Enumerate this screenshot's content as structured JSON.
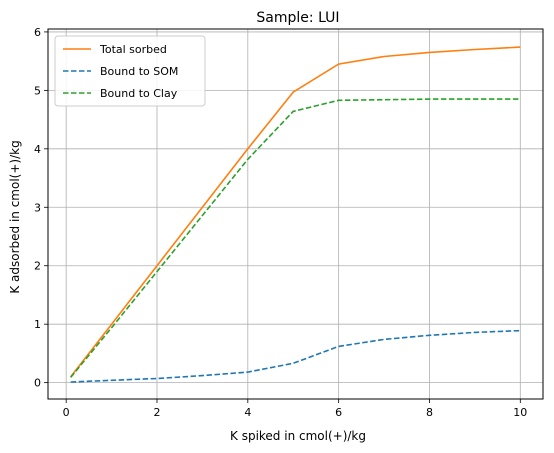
{
  "chart_data": {
    "type": "line",
    "title": "Sample: LUI",
    "xlabel": "K spiked in cmol(+)/kg",
    "ylabel": "K adsorbed in cmol(+)/kg",
    "xlim": [
      -0.4,
      10.5
    ],
    "ylim": [
      -0.28,
      6.05
    ],
    "x_ticks": [
      0,
      2,
      4,
      6,
      8,
      10
    ],
    "y_ticks": [
      0,
      1,
      2,
      3,
      4,
      5,
      6
    ],
    "grid": true,
    "legend_position": "top-left",
    "series": [
      {
        "name": "Total sorbed",
        "color": "#ff7f0e",
        "dash": "solid",
        "x": [
          0.1,
          1,
          2,
          3,
          4,
          5,
          6,
          7,
          8,
          9,
          10
        ],
        "y": [
          0.1,
          1.0,
          2.0,
          3.0,
          4.0,
          4.97,
          5.45,
          5.58,
          5.65,
          5.7,
          5.74
        ]
      },
      {
        "name": "Bound to SOM",
        "color": "#1f77b4",
        "dash": "dashed",
        "x": [
          0.1,
          1,
          2,
          3,
          4,
          5,
          6,
          7,
          8,
          9,
          10
        ],
        "y": [
          0.01,
          0.04,
          0.07,
          0.12,
          0.18,
          0.33,
          0.62,
          0.74,
          0.81,
          0.86,
          0.89
        ]
      },
      {
        "name": "Bound to Clay",
        "color": "#2ca02c",
        "dash": "dashed",
        "x": [
          0.1,
          1,
          2,
          3,
          4,
          5,
          6,
          7,
          8,
          9,
          10
        ],
        "y": [
          0.09,
          0.94,
          1.9,
          2.86,
          3.82,
          4.64,
          4.83,
          4.84,
          4.85,
          4.85,
          4.85
        ]
      }
    ]
  }
}
